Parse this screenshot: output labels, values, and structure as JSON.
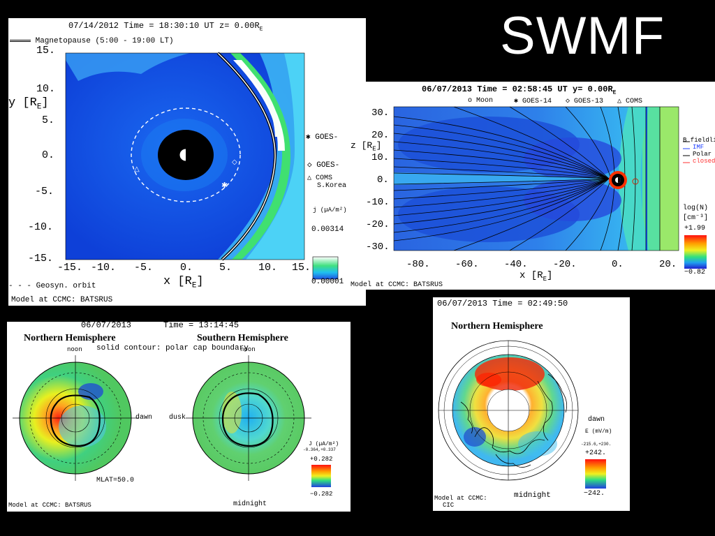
{
  "slide": {
    "title": "SWMF"
  },
  "colors": {
    "background": "#000000",
    "panel": "#ffffff",
    "field_blue": "#1f5fdc",
    "ridge_green": "#40e070"
  },
  "panel_mag_z": {
    "header": "07/14/2012  Time = 18:30:10 UT  z= 0.00R",
    "header_sub": "E",
    "legend_magnetopause": "Magnetopause (5:00 - 19:00 LT)",
    "ylabel": "y [R",
    "ylabel_sub": "E",
    "ylabel_end": "]",
    "yticks": [
      "15.",
      "10.",
      "5.",
      "0.",
      "-5.",
      "-10.",
      "-15."
    ],
    "xticks": [
      "-15.",
      "-10.",
      "-5.",
      "0.",
      "5.",
      "10.",
      "15."
    ],
    "xlabel": "x [R",
    "xlabel_sub": "E",
    "xlabel_end": "]",
    "legend_goes": "GOES-",
    "legend_goes2": "GOES-",
    "legend_coms": "COMS",
    "legend_coms2": "S.Korea",
    "legend_geosync": "- - - Geosyn. orbit",
    "cbar_unit": "j (µA/m²)",
    "cbar_max": "0.00314",
    "cbar_min": "0.00001",
    "credit": "Model at CCMC: BATSRUS"
  },
  "panel_mag_y": {
    "header": "06/07/2013  Time = 02:58:45 UT  y= 0.00R",
    "header_sub": "E",
    "legend_moon": "o Moon",
    "legend_goes14": "✱ GOES-14",
    "legend_goes13": "◇ GOES-13",
    "legend_coms": "△ COMS",
    "zlabel": "z [R",
    "zlabel_sub": "E",
    "zlabel_end": "]",
    "yticks": [
      "30.",
      "20.",
      "10.",
      "0.",
      "-10.",
      "-20.",
      "-30."
    ],
    "xticks": [
      "-80.",
      "-60.",
      "-40.",
      "-20.",
      "0.",
      "20."
    ],
    "xlabel": "x [R",
    "xlabel_sub": "E",
    "xlabel_end": "]",
    "field_title": "B fieldline",
    "field_imf": "IMF",
    "field_polar": "Polar",
    "field_closed": "closed",
    "cbar_title": "log(N)",
    "cbar_unit": "[cm⁻³]",
    "cbar_max": "+1.99",
    "cbar_min": "−0.82",
    "credit": "Model at CCMC: BATSRUS"
  },
  "panel_iono": {
    "date": "06/07/2013",
    "time": "Time = 13:14:45",
    "north": "Northern Hemisphere",
    "south": "Southern Hemisphere",
    "subtitle": "solid contour: polar cap boundary",
    "noon_left": "noon",
    "noon_right": "noon",
    "dawn": "dawn",
    "dusk": "dusk",
    "mlat": "MLAT=50.0",
    "midnight": "midnight",
    "cbar_unit": "J (µA/m²)",
    "cbar_range": "-0.364,+0.337",
    "cbar_max": "+0.282",
    "cbar_min": "−0.282",
    "credit": "Model at CCMC: BATSRUS"
  },
  "panel_ef": {
    "header": "06/07/2013  Time = 02:49:50",
    "title": "Northern Hemisphere",
    "dawn": "dawn",
    "midnight": "midnight",
    "cbar_unit": "E (mV/m)",
    "cbar_range": "-215.6,+230.",
    "cbar_max": "+242.",
    "cbar_min": "−242.",
    "credit": "Model at CCMC:",
    "credit2": "CIC"
  }
}
